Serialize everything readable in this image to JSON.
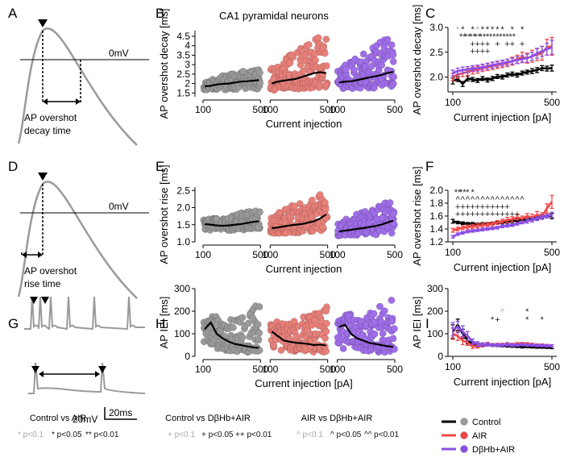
{
  "colors": {
    "control": "#000000",
    "control_points": "#9a9a9a",
    "air": "#f24848",
    "air_points": "#e8807a",
    "dbhb": "#8a4fe6",
    "dbhb_points": "#9f6ee8",
    "trace": "#9a9a9a"
  },
  "panel_letters": [
    "A",
    "B",
    "C",
    "D",
    "E",
    "F",
    "G",
    "H",
    "I"
  ],
  "diagrams": {
    "a": {
      "zero_label": "0mV",
      "caption_line1": "AP overshot",
      "caption_line2": "decay time"
    },
    "d": {
      "zero_label": "0mV",
      "caption_line1": "AP overshot",
      "caption_line2": "rise time"
    },
    "g": {
      "scale_v": "20mV",
      "scale_t": "20ms"
    }
  },
  "chart_data": [
    {
      "id": "B",
      "type": "scatter",
      "title": "CA1 pyramidal neurons",
      "ylabel": "AP overshot decay [ms]",
      "xlabel": "Current injection",
      "ylim": [
        1.3,
        4.8
      ],
      "yticks": [
        1.5,
        2,
        2.5,
        3,
        3.5,
        4,
        4.5
      ],
      "ytick_labels": [
        "1.5",
        "2",
        "2.5",
        "3",
        "3.5",
        "4",
        "4.5"
      ],
      "groups": [
        "Control",
        "AIR",
        "DβHb+AIR"
      ],
      "group_xticks": [
        "100",
        "500"
      ],
      "mean_lines": {
        "Control": [
          1.85,
          1.88,
          1.95,
          1.98,
          2.0,
          2.05,
          2.1,
          2.12,
          2.15,
          2.18
        ],
        "AIR": [
          2.0,
          2.1,
          2.15,
          2.2,
          2.25,
          2.35,
          2.45,
          2.55,
          2.6,
          2.55
        ],
        "DβHb+AIR": [
          2.05,
          2.1,
          2.12,
          2.18,
          2.25,
          2.32,
          2.38,
          2.45,
          2.55,
          2.62
        ]
      },
      "spread": {
        "Control": [
          1.6,
          2.8
        ],
        "AIR": [
          1.55,
          4.7
        ],
        "DβHb+AIR": [
          1.6,
          4.6
        ]
      }
    },
    {
      "id": "C",
      "type": "line",
      "xlabel": "Current injection [pA]",
      "ylabel": "AP overshot decay [ms]",
      "xlim": [
        100,
        500
      ],
      "ylim": [
        1.7,
        3.0
      ],
      "xticks": [
        "100",
        "500"
      ],
      "yticks": [
        "2.0",
        "2.5",
        "3.0"
      ],
      "x": [
        100,
        120,
        140,
        160,
        180,
        200,
        220,
        240,
        260,
        280,
        300,
        320,
        340,
        360,
        380,
        400,
        420,
        440,
        460,
        480,
        500
      ],
      "series": [
        {
          "name": "Control",
          "values": [
            1.92,
            1.96,
            1.86,
            1.97,
            1.95,
            1.93,
            1.97,
            1.94,
            1.97,
            2.01,
            2.0,
            2.04,
            2.06,
            2.04,
            2.08,
            2.1,
            2.12,
            2.14,
            2.18,
            2.17,
            2.18
          ],
          "err": [
            0.06,
            0.05,
            0.05,
            0.05,
            0.04,
            0.04,
            0.04,
            0.04,
            0.04,
            0.04,
            0.04,
            0.04,
            0.04,
            0.04,
            0.04,
            0.04,
            0.05,
            0.05,
            0.05,
            0.05,
            0.06
          ]
        },
        {
          "name": "AIR",
          "values": [
            2.0,
            2.05,
            2.08,
            2.1,
            2.13,
            2.15,
            2.18,
            2.2,
            2.22,
            2.24,
            2.26,
            2.28,
            2.32,
            2.36,
            2.4,
            2.38,
            2.42,
            2.45,
            2.48,
            2.6,
            2.62
          ],
          "err": [
            0.07,
            0.07,
            0.07,
            0.07,
            0.07,
            0.07,
            0.07,
            0.07,
            0.07,
            0.07,
            0.07,
            0.07,
            0.08,
            0.08,
            0.1,
            0.1,
            0.12,
            0.12,
            0.14,
            0.16,
            0.18
          ]
        },
        {
          "name": "DβHb+AIR",
          "values": [
            2.08,
            2.12,
            2.14,
            2.15,
            2.17,
            2.18,
            2.2,
            2.22,
            2.24,
            2.26,
            2.28,
            2.3,
            2.32,
            2.34,
            2.36,
            2.38,
            2.42,
            2.48,
            2.52,
            2.56,
            2.6
          ],
          "err": [
            0.06,
            0.06,
            0.06,
            0.06,
            0.06,
            0.06,
            0.06,
            0.06,
            0.06,
            0.06,
            0.06,
            0.06,
            0.06,
            0.07,
            0.07,
            0.08,
            0.08,
            0.1,
            0.1,
            0.12,
            0.14
          ]
        }
      ],
      "significance_rows": [
        [
          "*",
          "*",
          "",
          "*",
          "*",
          "*",
          "*",
          "*",
          "*",
          "*",
          "",
          "*",
          "",
          "*"
        ],
        [
          "",
          "**",
          "**",
          "**",
          "**",
          "**",
          "*",
          "**",
          "*",
          "**",
          "*",
          "**",
          "",
          ""
        ],
        [
          "",
          "",
          "",
          "+",
          "+",
          "+",
          "+",
          "",
          "+",
          "",
          "+",
          "+",
          "",
          "+"
        ],
        [
          "",
          "",
          "",
          "+",
          "+",
          "+",
          "+",
          "",
          "",
          "",
          "",
          "",
          "",
          ""
        ]
      ]
    },
    {
      "id": "E",
      "type": "scatter",
      "ylabel": "AP overshot rise [ms]",
      "xlabel": "Current injection",
      "ylim": [
        1.0,
        2.6
      ],
      "yticks": [
        1.0,
        1.5,
        2.0,
        2.5
      ],
      "ytick_labels": [
        "1.0",
        "1.5",
        "2.0",
        "2.5"
      ],
      "groups": [
        "Control",
        "AIR",
        "DβHb+AIR"
      ],
      "group_xticks": [
        "100",
        "500"
      ],
      "mean_lines": {
        "Control": [
          1.52,
          1.5,
          1.48,
          1.47,
          1.48,
          1.5,
          1.52,
          1.55,
          1.58,
          1.6
        ],
        "AIR": [
          1.4,
          1.42,
          1.45,
          1.48,
          1.5,
          1.52,
          1.56,
          1.6,
          1.68,
          1.8
        ],
        "DβHb+AIR": [
          1.3,
          1.33,
          1.35,
          1.38,
          1.4,
          1.43,
          1.46,
          1.5,
          1.56,
          1.62
        ]
      },
      "spread": {
        "Control": [
          1.3,
          1.95
        ],
        "AIR": [
          1.2,
          2.55
        ],
        "DβHb+AIR": [
          1.15,
          2.2
        ]
      }
    },
    {
      "id": "F",
      "type": "line",
      "xlabel": "Current injection [pA]",
      "ylabel": "AP overshot rise [ms]",
      "xlim": [
        100,
        500
      ],
      "ylim": [
        1.2,
        2.0
      ],
      "xticks": [
        "100",
        "500"
      ],
      "yticks": [
        "1.2",
        "1.4",
        "1.6",
        "1.8",
        "2.0"
      ],
      "x": [
        100,
        120,
        140,
        160,
        180,
        200,
        220,
        240,
        260,
        280,
        300,
        320,
        340,
        360,
        380,
        400,
        420,
        440,
        460,
        480,
        500
      ],
      "series": [
        {
          "name": "Control",
          "values": [
            1.52,
            1.5,
            1.49,
            1.48,
            1.48,
            1.47,
            1.48,
            1.48,
            1.49,
            1.5,
            1.5,
            1.51,
            1.52,
            1.53,
            1.54,
            1.55,
            1.56,
            1.57,
            1.59,
            1.6,
            1.6
          ],
          "err": [
            0.03,
            0.02,
            0.02,
            0.02,
            0.02,
            0.02,
            0.02,
            0.02,
            0.02,
            0.02,
            0.02,
            0.02,
            0.02,
            0.02,
            0.02,
            0.02,
            0.02,
            0.03,
            0.03,
            0.03,
            0.04
          ]
        },
        {
          "name": "AIR",
          "values": [
            1.38,
            1.4,
            1.42,
            1.43,
            1.44,
            1.45,
            1.46,
            1.47,
            1.48,
            1.5,
            1.52,
            1.54,
            1.55,
            1.58,
            1.56,
            1.6,
            1.58,
            1.62,
            1.6,
            1.72,
            1.82
          ],
          "err": [
            0.03,
            0.03,
            0.03,
            0.03,
            0.03,
            0.03,
            0.03,
            0.03,
            0.03,
            0.03,
            0.03,
            0.04,
            0.04,
            0.04,
            0.04,
            0.04,
            0.05,
            0.05,
            0.05,
            0.07,
            0.1
          ]
        },
        {
          "name": "DβHb+AIR",
          "values": [
            1.28,
            1.32,
            1.34,
            1.36,
            1.37,
            1.38,
            1.39,
            1.4,
            1.41,
            1.42,
            1.44,
            1.45,
            1.46,
            1.48,
            1.5,
            1.52,
            1.54,
            1.56,
            1.58,
            1.6,
            1.62
          ],
          "err": [
            0.02,
            0.02,
            0.02,
            0.02,
            0.02,
            0.02,
            0.02,
            0.02,
            0.02,
            0.02,
            0.02,
            0.02,
            0.02,
            0.02,
            0.02,
            0.03,
            0.03,
            0.03,
            0.03,
            0.03,
            0.04
          ]
        }
      ],
      "significance_rows": [
        [
          "**",
          "**",
          "*",
          "*",
          "",
          "",
          "",
          "",
          "",
          "",
          "",
          "",
          "",
          ""
        ],
        [
          "^",
          "^",
          "^",
          "^",
          "^",
          "^",
          "^",
          "^",
          "^",
          "^",
          "^",
          "^",
          "^",
          "^"
        ],
        [
          "+",
          "+",
          "+",
          "+",
          "+",
          "+",
          "+",
          "+",
          "+",
          "+",
          "+",
          "",
          "",
          ""
        ],
        [
          "+",
          "+",
          "+",
          "+",
          "+",
          "+",
          "+",
          "+",
          "+",
          "+",
          "+",
          "+",
          "+",
          ""
        ]
      ]
    },
    {
      "id": "H",
      "type": "scatter",
      "ylabel": "AP IEI [ms]",
      "xlabel": "Current injection [pA]",
      "ylim": [
        0,
        300
      ],
      "yticks": [
        0,
        100,
        200,
        300
      ],
      "ytick_labels": [
        "0",
        "100",
        "200",
        "300"
      ],
      "groups": [
        "Control",
        "AIR",
        "DβHb+AIR"
      ],
      "group_xticks": [
        "100",
        "500"
      ],
      "mean_lines": {
        "Control": [
          120,
          150,
          100,
          80,
          65,
          55,
          50,
          45,
          40,
          38
        ],
        "AIR": [
          110,
          90,
          70,
          65,
          60,
          58,
          55,
          50,
          52,
          48
        ],
        "DβHb+AIR": [
          130,
          140,
          100,
          80,
          70,
          60,
          55,
          50,
          45,
          42
        ]
      },
      "spread": {
        "Control": [
          10,
          230
        ],
        "AIR": [
          10,
          230
        ],
        "DβHb+AIR": [
          10,
          260
        ]
      }
    },
    {
      "id": "I",
      "type": "line",
      "xlabel": "Current injection [pA]",
      "ylabel": "AP IEI [ms]",
      "xlim": [
        100,
        500
      ],
      "ylim": [
        0,
        300
      ],
      "xticks": [
        "100",
        "500"
      ],
      "yticks": [
        "0",
        "100",
        "200",
        "300"
      ],
      "x": [
        100,
        120,
        140,
        160,
        180,
        200,
        220,
        240,
        260,
        280,
        300,
        320,
        340,
        360,
        380,
        400,
        420,
        440,
        460,
        480,
        500
      ],
      "series": [
        {
          "name": "Control",
          "values": [
            110,
            140,
            100,
            70,
            55,
            50,
            48,
            52,
            50,
            48,
            47,
            46,
            45,
            44,
            42,
            42,
            41,
            40,
            40,
            39,
            38
          ],
          "err": [
            30,
            25,
            20,
            15,
            10,
            8,
            6,
            6,
            5,
            5,
            5,
            5,
            5,
            5,
            5,
            4,
            4,
            4,
            4,
            4,
            4
          ]
        },
        {
          "name": "AIR",
          "values": [
            100,
            90,
            70,
            60,
            45,
            45,
            50,
            55,
            50,
            52,
            52,
            55,
            52,
            55,
            56,
            55,
            52,
            50,
            50,
            48,
            47
          ],
          "err": [
            25,
            20,
            18,
            12,
            10,
            8,
            8,
            7,
            7,
            6,
            6,
            6,
            6,
            6,
            6,
            6,
            6,
            5,
            5,
            5,
            5
          ]
        },
        {
          "name": "DβHb+AIR",
          "values": [
            120,
            130,
            110,
            90,
            65,
            55,
            52,
            52,
            50,
            50,
            50,
            52,
            50,
            50,
            52,
            50,
            50,
            48,
            48,
            47,
            46
          ],
          "err": [
            30,
            25,
            25,
            20,
            12,
            10,
            8,
            7,
            6,
            6,
            6,
            6,
            6,
            5,
            5,
            5,
            5,
            5,
            5,
            5,
            5
          ]
        }
      ],
      "significance": [
        {
          "x_index": 8,
          "row": 1,
          "symbol": "*"
        },
        {
          "x_index": 9,
          "row": 1,
          "symbol": "+"
        },
        {
          "x_index": 10,
          "row": 0,
          "symbol": "^"
        },
        {
          "x_index": 15,
          "row": 0,
          "symbol": "*"
        },
        {
          "x_index": 15,
          "row": 1,
          "symbol": "*"
        },
        {
          "x_index": 18,
          "row": 1,
          "symbol": "*"
        }
      ]
    }
  ],
  "stat_legends": [
    {
      "title": "Control vs AIR",
      "items": [
        {
          "symbol": "*",
          "text": "p<0.1",
          "faded": true
        },
        {
          "symbol": "*",
          "text": "p<0.05",
          "faded": false
        },
        {
          "symbol": "**",
          "text": "p<0.01",
          "faded": false
        }
      ]
    },
    {
      "title": "Control vs DβHb+AIR",
      "items": [
        {
          "symbol": "+",
          "text": "p<0.1",
          "faded": true
        },
        {
          "symbol": "+",
          "text": "p<0.05",
          "faded": false
        },
        {
          "symbol": "++",
          "text": "p<0.01",
          "faded": false
        }
      ]
    },
    {
      "title": "AIR vs DβHb+AIR",
      "items": [
        {
          "symbol": "^",
          "text": "p<0.1",
          "faded": true
        },
        {
          "symbol": "^",
          "text": "p<0.05",
          "faded": false
        },
        {
          "symbol": "^^",
          "text": "p<0.01",
          "faded": false
        }
      ]
    }
  ],
  "legend": [
    {
      "label": "Control",
      "color_key": "control"
    },
    {
      "label": "AIR",
      "color_key": "air"
    },
    {
      "label": "DβHb+AIR",
      "color_key": "dbhb"
    }
  ]
}
